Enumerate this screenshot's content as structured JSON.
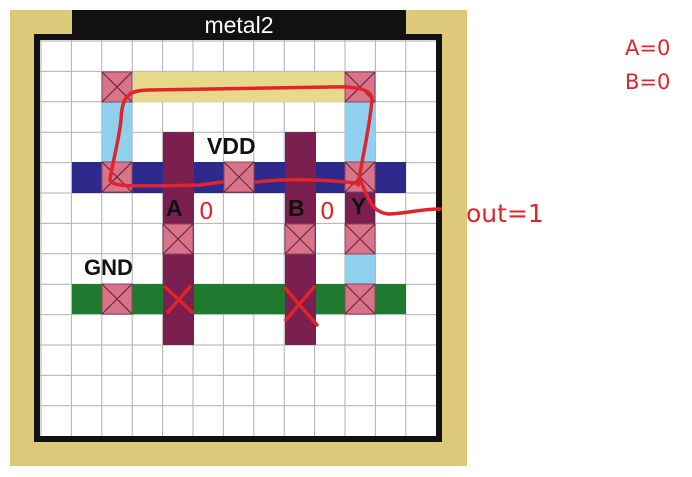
{
  "diagram": {
    "title": "metal2",
    "labels": {
      "vdd": "VDD",
      "gnd": "GND",
      "input_a": "A",
      "input_b": "B",
      "output_y": "Y"
    },
    "colors": {
      "frame": "#dcc97a",
      "border": "#111111",
      "grid_line": "#b0b0b0",
      "vdd_rail": "#2e2a8c",
      "gnd_rail": "#1f7a2f",
      "poly": "#7a1f4f",
      "contact": "#d9738a",
      "metal1": "#8ed0ee",
      "metal2": "#e8d98a",
      "annotation": "#e0242b"
    }
  },
  "annotations": {
    "a_value": "0",
    "b_value": "0",
    "out": "out=1",
    "input_a_state": "A=0",
    "input_b_state": "B=0"
  }
}
